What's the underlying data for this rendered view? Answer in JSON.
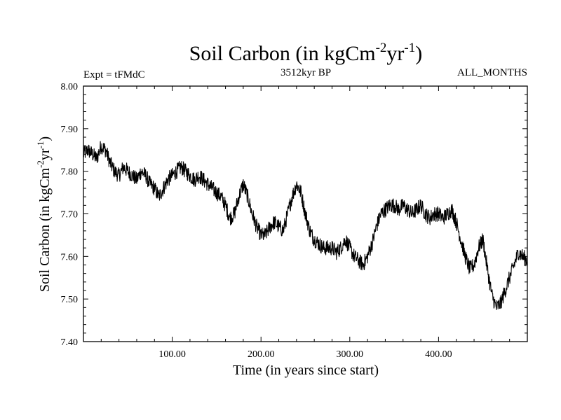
{
  "chart_data": {
    "type": "line",
    "title": "Soil Carbon (in kgCm",
    "title_sup1": "-2",
    "title_mid": "yr",
    "title_sup2": "-1",
    "title_end": ")",
    "experiment": "Expt = tFMdC",
    "period": "3512kyr BP",
    "months": "ALL_MONTHS",
    "xlabel": "Time (in years since start)",
    "ylabel": "Soil Carbon (in kgCm",
    "ylabel_sup1": "-2",
    "ylabel_mid": "yr",
    "ylabel_sup2": "-1",
    "ylabel_end": ")",
    "xlim": [
      0,
      500
    ],
    "ylim": [
      7.4,
      8.0
    ],
    "xticks": [
      100,
      200,
      300,
      400
    ],
    "xtick_labels": [
      "100.00",
      "200.00",
      "300.00",
      "400.00"
    ],
    "yticks": [
      7.4,
      7.5,
      7.6,
      7.7,
      7.8,
      7.9,
      8.0
    ],
    "ytick_labels": [
      "7.40",
      "7.50",
      "7.60",
      "7.70",
      "7.80",
      "7.90",
      "8.00"
    ],
    "series": [
      {
        "name": "Soil Carbon",
        "color": "#000000",
        "noise_amplitude": 0.018,
        "x": [
          0,
          5,
          10,
          15,
          20,
          25,
          30,
          35,
          40,
          45,
          50,
          55,
          60,
          65,
          70,
          75,
          80,
          85,
          90,
          95,
          100,
          105,
          110,
          115,
          120,
          125,
          130,
          135,
          140,
          145,
          150,
          155,
          160,
          165,
          170,
          175,
          180,
          185,
          190,
          195,
          200,
          205,
          210,
          215,
          220,
          225,
          230,
          235,
          240,
          245,
          250,
          255,
          260,
          265,
          270,
          275,
          280,
          285,
          290,
          295,
          300,
          305,
          310,
          315,
          320,
          325,
          330,
          335,
          340,
          345,
          350,
          355,
          360,
          365,
          370,
          375,
          380,
          385,
          390,
          395,
          400,
          405,
          410,
          415,
          420,
          425,
          430,
          435,
          440,
          445,
          450,
          455,
          460,
          465,
          470,
          475,
          480,
          485,
          490,
          495,
          500
        ],
        "values": [
          7.84,
          7.85,
          7.84,
          7.83,
          7.86,
          7.85,
          7.82,
          7.8,
          7.79,
          7.81,
          7.8,
          7.79,
          7.78,
          7.8,
          7.79,
          7.77,
          7.76,
          7.74,
          7.76,
          7.78,
          7.79,
          7.8,
          7.81,
          7.8,
          7.79,
          7.78,
          7.79,
          7.78,
          7.77,
          7.76,
          7.75,
          7.74,
          7.72,
          7.69,
          7.7,
          7.74,
          7.77,
          7.74,
          7.7,
          7.67,
          7.65,
          7.65,
          7.67,
          7.68,
          7.67,
          7.66,
          7.7,
          7.74,
          7.77,
          7.75,
          7.7,
          7.66,
          7.64,
          7.63,
          7.62,
          7.62,
          7.62,
          7.61,
          7.62,
          7.64,
          7.62,
          7.6,
          7.59,
          7.58,
          7.6,
          7.63,
          7.67,
          7.7,
          7.71,
          7.72,
          7.72,
          7.71,
          7.72,
          7.71,
          7.7,
          7.71,
          7.72,
          7.7,
          7.69,
          7.7,
          7.7,
          7.69,
          7.7,
          7.71,
          7.68,
          7.64,
          7.6,
          7.57,
          7.58,
          7.62,
          7.64,
          7.57,
          7.51,
          7.48,
          7.49,
          7.52,
          7.55,
          7.58,
          7.61,
          7.6,
          7.59
        ]
      }
    ]
  }
}
